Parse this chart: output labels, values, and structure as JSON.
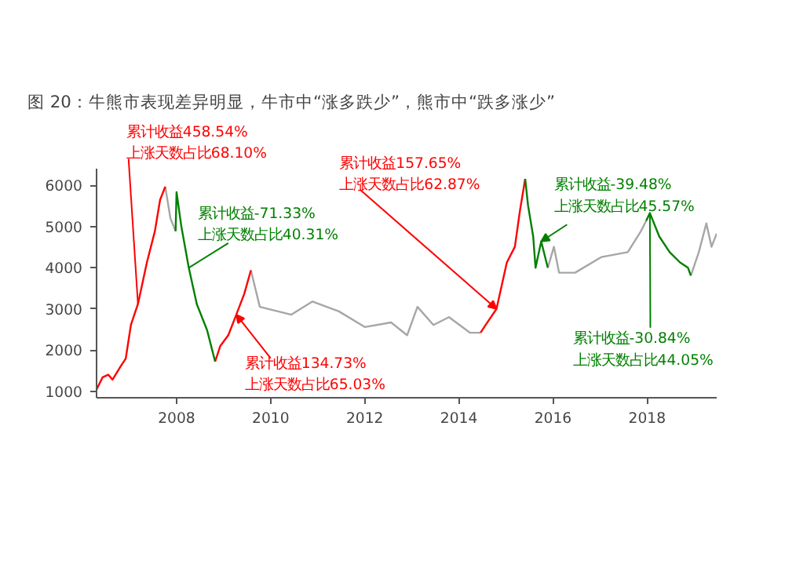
{
  "chart_data": {
    "type": "line",
    "title": "图 20：牛熊市表现差异明显，牛市中“涨多跌少”，熊市中“跌多涨少”",
    "series": [
      {
        "color": "#a6a6a6",
        "x": [
          2007.76,
          2007.87,
          2007.98,
          2008.5,
          2009.58,
          2009.77,
          2010.44,
          2010.89,
          2011.45,
          2012.0,
          2012.56,
          2012.9,
          2013.12,
          2013.46,
          2013.79,
          2014.24,
          2014.46,
          2015.0,
          2015.89,
          2016.02,
          2016.13,
          2016.47,
          2017.03,
          2017.59,
          2017.87,
          2017.98,
          2018.5,
          2018.93,
          2019.1,
          2019.26,
          2019.37,
          2019.48
        ],
        "values": [
          5970,
          5200,
          4890,
          null,
          3940,
          3050,
          2860,
          3180,
          2940,
          2560,
          2670,
          2360,
          3050,
          2610,
          2800,
          2420,
          2420,
          null,
          4000,
          4510,
          3880,
          3880,
          4260,
          4380,
          4890,
          5140,
          null,
          3810,
          4380,
          5080,
          4510,
          4830
        ]
      },
      {
        "color": "#ff0000",
        "x": [
          2006.3,
          2006.43,
          2006.55,
          2006.64,
          2006.81,
          2006.92,
          2007.03,
          2007.18,
          2007.37,
          2007.54,
          2007.65,
          2007.76,
          2008.3,
          2008.82,
          2008.93,
          2009.1,
          2009.27,
          2009.44,
          2009.58,
          2012.0,
          2014.46,
          2014.57,
          2014.8,
          2015.02,
          2015.19,
          2015.3,
          2015.41
        ],
        "values": [
          1040,
          1340,
          1400,
          1280,
          1600,
          1790,
          2610,
          3120,
          4130,
          4890,
          5650,
          5970,
          null,
          1720,
          2100,
          2360,
          2860,
          3370,
          3940,
          null,
          2420,
          2610,
          3000,
          4130,
          4510,
          5400,
          6160
        ]
      },
      {
        "color": "#008000",
        "x": [
          2007.98,
          2008.0,
          2008.1,
          2008.26,
          2008.43,
          2008.65,
          2008.82,
          2012.0,
          2015.41,
          2015.47,
          2015.58,
          2015.63,
          2015.75,
          2015.89,
          2017.0,
          2017.98,
          2018.06,
          2018.26,
          2018.48,
          2018.7,
          2018.87,
          2018.93
        ],
        "values": [
          4890,
          5840,
          5020,
          4000,
          3120,
          2480,
          1720,
          null,
          6160,
          5520,
          4760,
          4000,
          4640,
          4000,
          null,
          5140,
          5330,
          4760,
          4380,
          4130,
          4000,
          3810
        ]
      }
    ],
    "xlim": [
      2006.3,
      2019.48
    ],
    "ylim": [
      840,
      6420
    ],
    "xticks": [
      2008,
      2010,
      2012,
      2014,
      2016,
      2018
    ],
    "yticks": [
      1000,
      2000,
      3000,
      4000,
      5000,
      6000
    ],
    "grid": false,
    "annotations": [
      {
        "text": "累计收益458.54%\n上涨天数占比68.10%",
        "x": 2007.18,
        "y": 3120
      },
      {
        "text": "累计收益-71.33%\n上涨天数占比40.31%",
        "x": 2008.26,
        "y": 4000
      },
      {
        "text": "累计收益134.73%\n上涨天数占比65.03%",
        "x": 2009.27,
        "y": 2860
      },
      {
        "text": "累计收益157.65%\n上涨天数占比62.87%",
        "x": 2014.8,
        "y": 3000
      },
      {
        "text": "累计收益-39.48%\n上涨天数占比45.57%",
        "x": 2015.75,
        "y": 4640
      },
      {
        "text": "累计收益-30.84%\n上涨天数占比44.05%",
        "x": 2018.06,
        "y": 5330
      }
    ]
  }
}
